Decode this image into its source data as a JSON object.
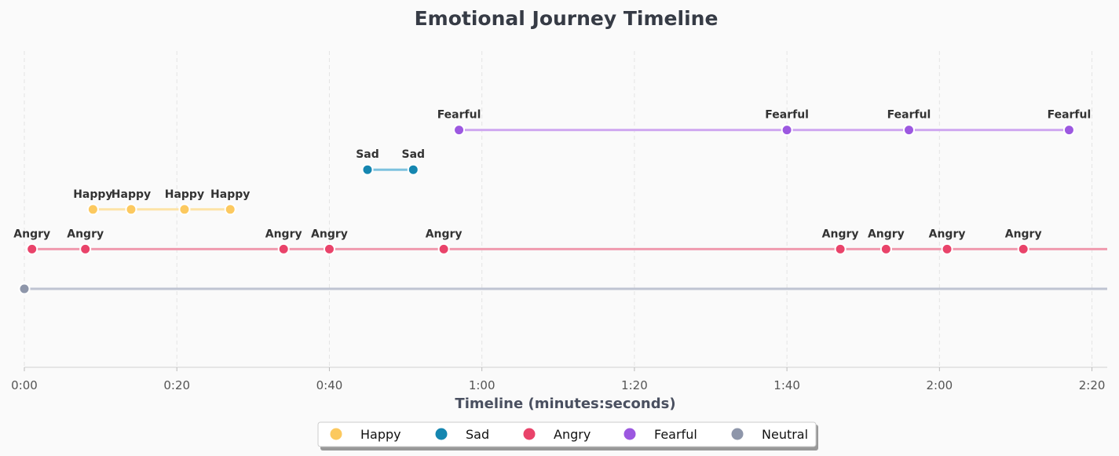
{
  "chart_data": {
    "type": "scatter",
    "title": "Emotional Journey Timeline",
    "xlabel": "Timeline (minutes:seconds)",
    "ylabel": "",
    "xlim": [
      0,
      142
    ],
    "x_unit": "seconds",
    "x_ticks": [
      0,
      20,
      40,
      60,
      80,
      100,
      120,
      140
    ],
    "x_tick_labels": [
      "0:00",
      "0:20",
      "0:40",
      "1:00",
      "1:20",
      "1:40",
      "2:00",
      "2:20"
    ],
    "grid": "vertical dashed",
    "legend_position": "bottom-center",
    "series": [
      {
        "name": "Happy",
        "color": "#fcc95f",
        "line_color": "#fde3a6",
        "level": 3,
        "x": [
          9,
          14,
          21,
          27
        ],
        "labels": [
          "Happy",
          "Happy",
          "Happy",
          "Happy"
        ]
      },
      {
        "name": "Sad",
        "color": "#1586b0",
        "line_color": "#7dc2de",
        "level": 4,
        "x": [
          45,
          51
        ],
        "labels": [
          "Sad",
          "Sad"
        ]
      },
      {
        "name": "Angry",
        "color": "#e9436a",
        "line_color": "#f09aae",
        "level": 2,
        "x": [
          1,
          8,
          34,
          40,
          55,
          107,
          113,
          121,
          131
        ],
        "labels": [
          "Angry",
          "Angry",
          "Angry",
          "Angry",
          "Angry",
          "Angry",
          "Angry",
          "Angry",
          "Angry"
        ],
        "line_extends_to_end": true
      },
      {
        "name": "Fearful",
        "color": "#9c58e0",
        "line_color": "#cfa8f0",
        "level": 5,
        "x": [
          57,
          100,
          116,
          137
        ],
        "labels": [
          "Fearful",
          "Fearful",
          "Fearful",
          "Fearful"
        ]
      },
      {
        "name": "Neutral",
        "color": "#8e96aa",
        "line_color": "#bfc4d2",
        "level": 1,
        "x": [
          0
        ],
        "labels": [
          ""
        ],
        "line_extends_to_end": true
      }
    ],
    "legend": [
      "Happy",
      "Sad",
      "Angry",
      "Fearful",
      "Neutral"
    ]
  }
}
